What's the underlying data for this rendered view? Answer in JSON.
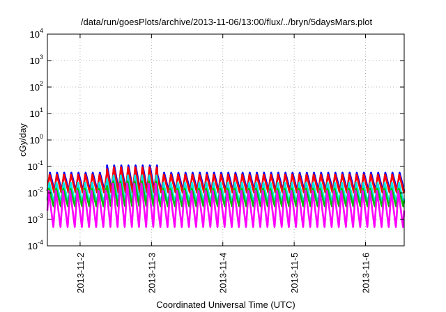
{
  "chart_data": {
    "type": "line",
    "title": "/data/run/goesPlots/archive/2013-11-06/13:00/flux/../bryn/5daysMars.plot",
    "xlabel": "Coordinated Universal Time (UTC)",
    "ylabel": "cGy/day",
    "y_scale": "log",
    "ylim": [
      0.0001,
      10000
    ],
    "y_ticks": [
      {
        "value": 0.0001,
        "base": "10",
        "exp": "-4"
      },
      {
        "value": 0.001,
        "base": "10",
        "exp": "-3"
      },
      {
        "value": 0.01,
        "base": "10",
        "exp": "-2"
      },
      {
        "value": 0.1,
        "base": "10",
        "exp": "-1"
      },
      {
        "value": 1,
        "base": "10",
        "exp": "0"
      },
      {
        "value": 10,
        "base": "10",
        "exp": "1"
      },
      {
        "value": 100,
        "base": "10",
        "exp": "2"
      },
      {
        "value": 1000,
        "base": "10",
        "exp": "3"
      },
      {
        "value": 10000,
        "base": "10",
        "exp": "4"
      }
    ],
    "xlim": [
      "2013-11-01T13:00",
      "2013-11-06T13:00"
    ],
    "x_ticks": [
      {
        "value": "2013-11-02",
        "label": "2013-11-2"
      },
      {
        "value": "2013-11-03",
        "label": "2013-11-3"
      },
      {
        "value": "2013-11-04",
        "label": "2013-11-4"
      },
      {
        "value": "2013-11-05",
        "label": "2013-11-5"
      },
      {
        "value": "2013-11-06",
        "label": "2013-11-6"
      }
    ],
    "grid": true,
    "oscillation": {
      "cycles_per_day": 10,
      "burst_days": [
        "2013-11-02T09:00",
        "2013-11-03T02:00"
      ]
    },
    "series": [
      {
        "color": "#0000ff",
        "peak": 0.06,
        "trough": 0.012
      },
      {
        "color": "#ff0000",
        "peak": 0.05,
        "trough": 0.01
      },
      {
        "color": "#00e5e5",
        "peak": 0.025,
        "trough": 0.004
      },
      {
        "color": "#00c000",
        "peak": 0.015,
        "trough": 0.003
      },
      {
        "color": "#ff00ff",
        "peak": 0.012,
        "trough": 0.0005
      }
    ]
  }
}
